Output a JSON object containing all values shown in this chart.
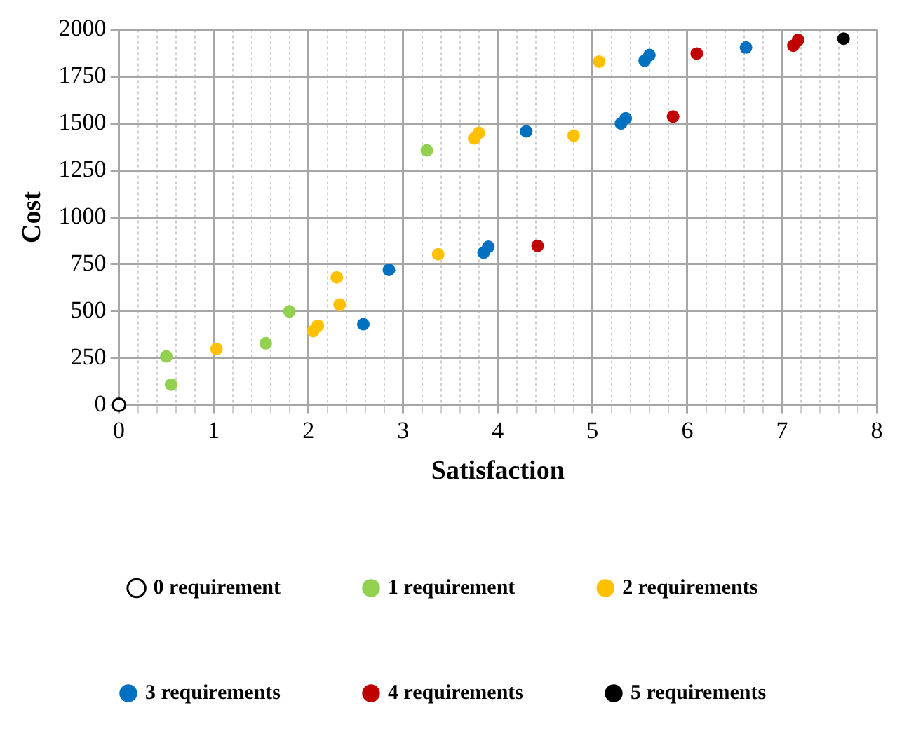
{
  "chart_data": {
    "type": "scatter",
    "xlabel": "Satisfaction",
    "ylabel": "Cost",
    "xlim": [
      0,
      8
    ],
    "ylim": [
      0,
      2000
    ],
    "xticks": [
      0,
      {
        "value": 0.2,
        "label": null
      },
      {
        "value": 0.4,
        "label": null
      },
      {
        "value": 0.6,
        "label": null
      },
      {
        "value": 0.8,
        "label": null
      },
      1,
      {
        "value": 1.2,
        "label": null
      },
      {
        "value": 1.4,
        "label": null
      },
      {
        "value": 1.6,
        "label": null
      },
      {
        "value": 1.8,
        "label": null
      },
      2,
      {
        "value": 2.2,
        "label": null
      },
      {
        "value": 2.4,
        "label": null
      },
      {
        "value": 2.6,
        "label": null
      },
      {
        "value": 2.8,
        "label": null
      },
      3,
      {
        "value": 3.2,
        "label": null
      },
      {
        "value": 3.4,
        "label": null
      },
      {
        "value": 3.6,
        "label": null
      },
      {
        "value": 3.8,
        "label": null
      },
      4,
      {
        "value": 4.2,
        "label": null
      },
      {
        "value": 4.4,
        "label": null
      },
      {
        "value": 4.6,
        "label": null
      },
      {
        "value": 4.8,
        "label": null
      },
      5,
      {
        "value": 5.2,
        "label": null
      },
      {
        "value": 5.4,
        "label": null
      },
      {
        "value": 5.6,
        "label": null
      },
      {
        "value": 5.8,
        "label": null
      },
      6,
      {
        "value": 6.2,
        "label": null
      },
      {
        "value": 6.4,
        "label": null
      },
      {
        "value": 6.6,
        "label": null
      },
      {
        "value": 6.8,
        "label": null
      },
      7,
      {
        "value": 7.2,
        "label": null
      },
      {
        "value": 7.4,
        "label": null
      },
      {
        "value": 7.6,
        "label": null
      },
      {
        "value": 7.8,
        "label": null
      },
      8
    ],
    "yticks": [
      0,
      250,
      500,
      750,
      1000,
      1250,
      1500,
      1750,
      2000
    ],
    "grid": true,
    "legend": "bottom",
    "marker": "circle",
    "series": [
      {
        "name": "0 requirement",
        "color": "#ffffff",
        "x": [
          0
        ],
        "values": [
          0
        ]
      },
      {
        "name": "1 requirement",
        "color": "#92d050",
        "x": [
          0.5,
          0.55,
          1.55,
          1.8,
          3.25
        ],
        "values": [
          258,
          108,
          328,
          498,
          1357
        ]
      },
      {
        "name": "2 requirements",
        "color": "#ffc000",
        "x": [
          1.03,
          2.05,
          2.1,
          2.3,
          2.33,
          3.37,
          3.75,
          3.8,
          4.8,
          5.07
        ],
        "values": [
          298,
          393,
          422,
          680,
          535,
          803,
          1420,
          1450,
          1435,
          1830
        ]
      },
      {
        "name": "3 requirements",
        "color": "#0070c0",
        "x": [
          2.58,
          2.85,
          3.85,
          3.9,
          4.3,
          5.3,
          5.35,
          5.55,
          5.6,
          6.62
        ],
        "values": [
          430,
          720,
          812,
          843,
          1458,
          1500,
          1528,
          1835,
          1865,
          1905
        ]
      },
      {
        "name": "4 requirements",
        "color": "#c00000",
        "x": [
          4.42,
          5.85,
          6.1,
          7.12,
          7.17
        ],
        "values": [
          848,
          1537,
          1873,
          1915,
          1945
        ]
      },
      {
        "name": "5 requirements",
        "color": "#000000",
        "x": [
          7.65
        ],
        "values": [
          1952
        ]
      }
    ]
  }
}
